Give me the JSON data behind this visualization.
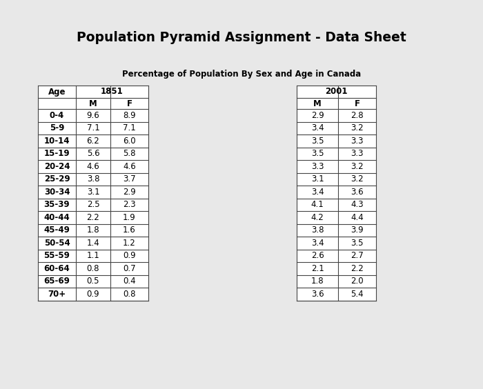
{
  "title_parts": [
    {
      "text": "P",
      "big": true
    },
    {
      "text": "opulation ",
      "big": false
    },
    {
      "text": "P",
      "big": true
    },
    {
      "text": "yramid ",
      "big": false
    },
    {
      "text": "A",
      "big": true
    },
    {
      "text": "ssignment",
      "big": false
    },
    {
      "text": " - ",
      "big": false
    },
    {
      "text": "D",
      "big": true
    },
    {
      "text": "ata ",
      "big": false
    },
    {
      "text": "S",
      "big": true
    },
    {
      "text": "heet",
      "big": false
    }
  ],
  "title": "Population Pyramid Assignment - Data Sheet",
  "subtitle": "Percentage of Population By Sex and Age in Canada",
  "age_groups": [
    "0-4",
    "5-9",
    "10-14",
    "15-19",
    "20-24",
    "25-29",
    "30-34",
    "35-39",
    "40-44",
    "45-49",
    "50-54",
    "55-59",
    "60-64",
    "65-69",
    "70+"
  ],
  "year1851_label": "1851",
  "year2001_label": "2001",
  "M1851": [
    9.6,
    7.1,
    6.2,
    5.6,
    4.6,
    3.8,
    3.1,
    2.5,
    2.2,
    1.8,
    1.4,
    1.1,
    0.8,
    0.5,
    0.9
  ],
  "F1851": [
    8.9,
    7.1,
    6.0,
    5.8,
    4.6,
    3.7,
    2.9,
    2.3,
    1.9,
    1.6,
    1.2,
    0.9,
    0.7,
    0.4,
    0.8
  ],
  "M2001": [
    2.9,
    3.4,
    3.5,
    3.5,
    3.3,
    3.1,
    3.4,
    4.1,
    4.2,
    3.8,
    3.4,
    2.6,
    2.1,
    1.8,
    3.6
  ],
  "F2001": [
    2.8,
    3.2,
    3.3,
    3.3,
    3.2,
    3.2,
    3.6,
    4.3,
    4.4,
    3.9,
    3.5,
    2.7,
    2.2,
    2.0,
    5.4
  ],
  "bg_color": "#e8e8e8",
  "cell_fontsize": 8.5,
  "header_fontsize": 8.5,
  "title_fontsize": 13.5,
  "subtitle_fontsize": 8.5,
  "line_color": "#444444",
  "line_width": 0.8
}
